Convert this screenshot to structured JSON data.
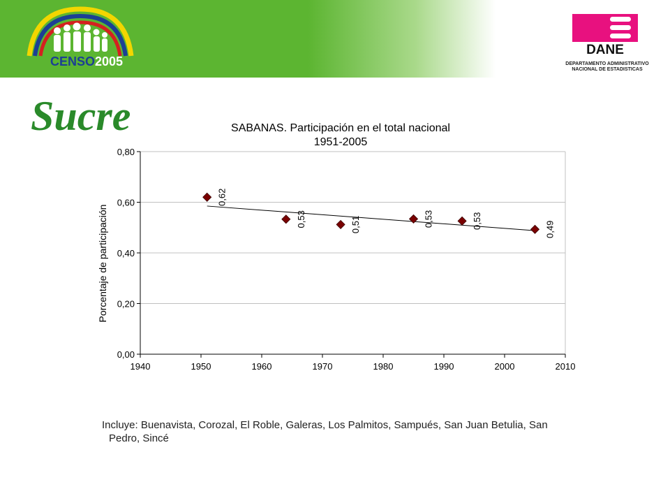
{
  "header": {
    "logo_censo_text_a": "CENSO",
    "logo_censo_text_b": "2005",
    "dane_logo_text": "DANE",
    "dane_caption_line1": "DEPARTAMENTO ADMINISTRATIVO",
    "dane_caption_line2": "NACIONAL DE ESTADISTICAS"
  },
  "page_title": "Sucre",
  "chart_data": {
    "type": "scatter",
    "title": "SABANAS. Participación en el total nacional",
    "subtitle": "1951-2005",
    "xlabel": "",
    "ylabel": "Porcentaje de participación",
    "xlim": [
      1940,
      2010
    ],
    "ylim": [
      0,
      0.8
    ],
    "x_ticks": [
      1940,
      1950,
      1960,
      1970,
      1980,
      1990,
      2000,
      2010
    ],
    "y_ticks": [
      "0,00",
      "0,20",
      "0,40",
      "0,60",
      "0,80"
    ],
    "grid": true,
    "points": [
      {
        "x": 1951,
        "y": 0.62,
        "label": "0,62"
      },
      {
        "x": 1964,
        "y": 0.533,
        "label": "0,53"
      },
      {
        "x": 1973,
        "y": 0.512,
        "label": "0,51"
      },
      {
        "x": 1985,
        "y": 0.534,
        "label": "0,53"
      },
      {
        "x": 1993,
        "y": 0.526,
        "label": "0,53"
      },
      {
        "x": 2005,
        "y": 0.493,
        "label": "0,49"
      }
    ],
    "trendline": {
      "x0": 1951,
      "y0": 0.585,
      "x1": 2005,
      "y1": 0.488
    },
    "colors": {
      "marker": "#7a0000",
      "grid": "#c0c0c0",
      "trend": "#000000"
    }
  },
  "footnote": {
    "line1": "Incluye: Buenavista, Corozal, El Roble, Galeras, Los Palmitos, Sampués, San Juan Betulia, San",
    "line2": "Pedro, Sincé"
  }
}
